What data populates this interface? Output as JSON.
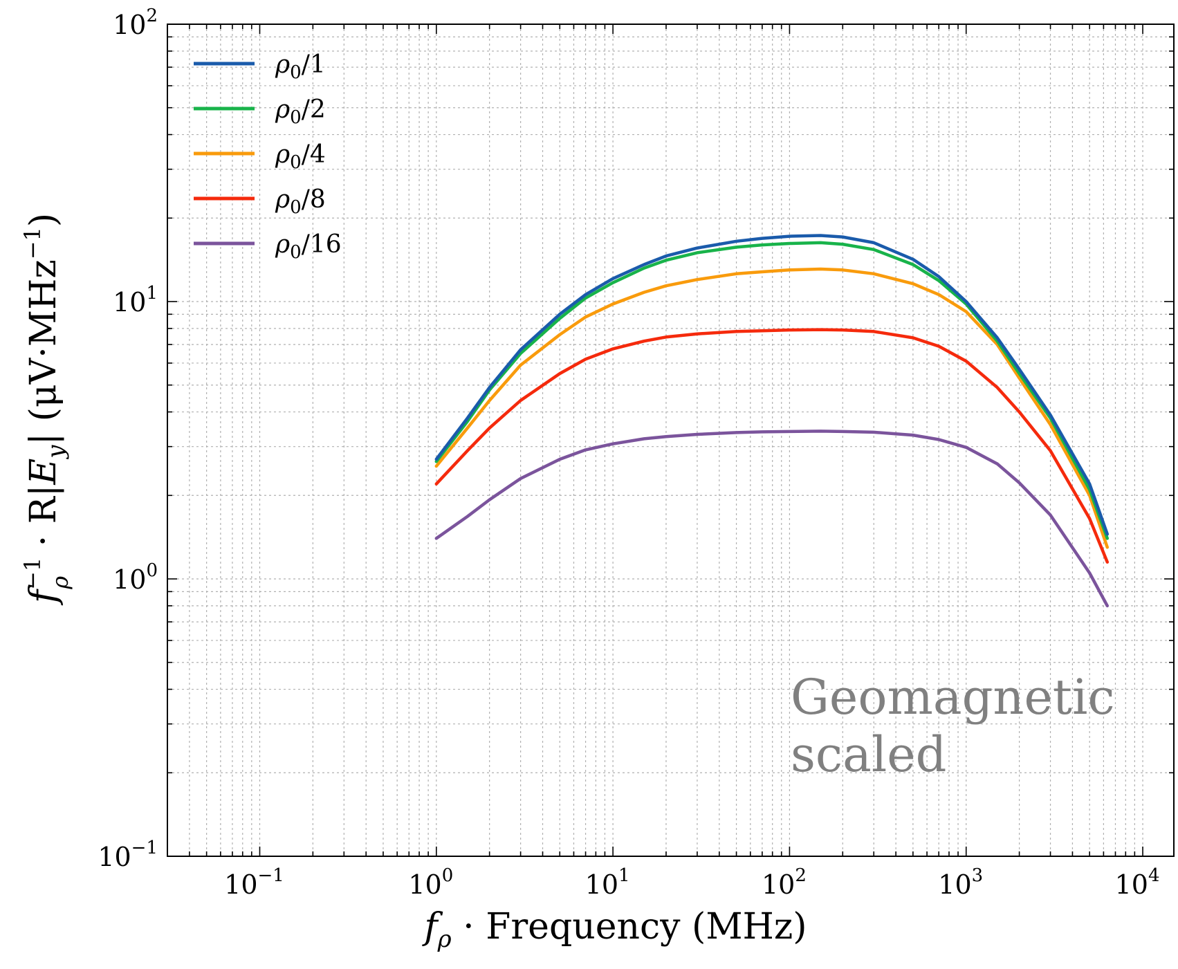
{
  "chart_data": {
    "type": "line",
    "xscale": "log",
    "yscale": "log",
    "xlim": [
      0.03,
      15000
    ],
    "ylim": [
      0.1,
      100
    ],
    "grid": true,
    "xlabel": {
      "prefix": "f",
      "subscript": "ρ",
      "text": " · Frequency (MHz)"
    },
    "ylabel": {
      "prefix": "f",
      "superscript": "−1",
      "subscript": "ρ",
      "text1": " · R|",
      "var": "E",
      "varsub": "y",
      "text2": "| (μV·MHz",
      "text2sup": "−1",
      "text3": ")"
    },
    "x_ticks": [
      {
        "value": 0.1,
        "base": "10",
        "exp": "−1"
      },
      {
        "value": 1,
        "base": "10",
        "exp": "0"
      },
      {
        "value": 10,
        "base": "10",
        "exp": "1"
      },
      {
        "value": 100,
        "base": "10",
        "exp": "2"
      },
      {
        "value": 1000,
        "base": "10",
        "exp": "3"
      },
      {
        "value": 10000,
        "base": "10",
        "exp": "4"
      }
    ],
    "y_ticks": [
      {
        "value": 0.1,
        "base": "10",
        "exp": "−1"
      },
      {
        "value": 1,
        "base": "10",
        "exp": "0"
      },
      {
        "value": 10,
        "base": "10",
        "exp": "1"
      },
      {
        "value": 100,
        "base": "10",
        "exp": "2"
      }
    ],
    "x": [
      1,
      1.5,
      2,
      3,
      5,
      7,
      10,
      15,
      20,
      30,
      50,
      70,
      100,
      150,
      200,
      300,
      500,
      700,
      1000,
      1500,
      2000,
      3000,
      5000,
      6300
    ],
    "series": [
      {
        "name": "ρ₀/1",
        "label_main": "ρ",
        "label_sub": "0",
        "label_rest": "/1",
        "color": "#1a5bab",
        "values": [
          2.7,
          3.8,
          4.9,
          6.7,
          9.0,
          10.6,
          12.1,
          13.6,
          14.6,
          15.6,
          16.5,
          16.9,
          17.2,
          17.3,
          17.1,
          16.3,
          14.2,
          12.3,
          10.0,
          7.4,
          5.7,
          3.9,
          2.2,
          1.45
        ]
      },
      {
        "name": "ρ₀/2",
        "label_main": "ρ",
        "label_sub": "0",
        "label_rest": "/2",
        "color": "#18b34a",
        "values": [
          2.65,
          3.7,
          4.8,
          6.5,
          8.7,
          10.3,
          11.7,
          13.2,
          14.1,
          15.0,
          15.7,
          16.0,
          16.2,
          16.3,
          16.1,
          15.4,
          13.6,
          11.9,
          9.8,
          7.2,
          5.5,
          3.8,
          2.1,
          1.4
        ]
      },
      {
        "name": "ρ₀/4",
        "label_main": "ρ",
        "label_sub": "0",
        "label_rest": "/4",
        "color": "#f99b0c",
        "values": [
          2.55,
          3.5,
          4.4,
          5.9,
          7.6,
          8.8,
          9.8,
          10.8,
          11.4,
          12.0,
          12.6,
          12.8,
          13.0,
          13.1,
          13.0,
          12.6,
          11.6,
          10.6,
          9.2,
          7.0,
          5.3,
          3.6,
          2.0,
          1.3
        ]
      },
      {
        "name": "ρ₀/8",
        "label_main": "ρ",
        "label_sub": "0",
        "label_rest": "/8",
        "color": "#f52a0c",
        "values": [
          2.2,
          2.9,
          3.5,
          4.4,
          5.5,
          6.2,
          6.75,
          7.2,
          7.45,
          7.65,
          7.8,
          7.85,
          7.9,
          7.92,
          7.9,
          7.8,
          7.4,
          6.9,
          6.1,
          4.9,
          4.0,
          2.9,
          1.65,
          1.15
        ]
      },
      {
        "name": "ρ₀/16",
        "label_main": "ρ",
        "label_sub": "0",
        "label_rest": "/16",
        "color": "#7b549c",
        "values": [
          1.4,
          1.68,
          1.93,
          2.3,
          2.7,
          2.92,
          3.07,
          3.2,
          3.26,
          3.32,
          3.37,
          3.39,
          3.4,
          3.41,
          3.4,
          3.38,
          3.3,
          3.18,
          2.98,
          2.6,
          2.22,
          1.7,
          1.05,
          0.8
        ]
      }
    ],
    "legend_position": "top-left",
    "annotation": {
      "line1": "Geomagnetic",
      "line2": "scaled"
    }
  }
}
